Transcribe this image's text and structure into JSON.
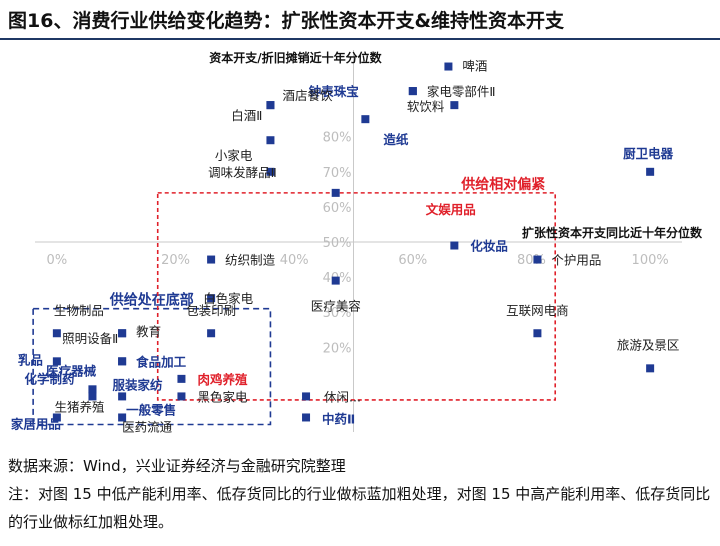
{
  "header": {
    "title": "图16、消费行业供给变化趋势：扩张性资本开支&维持性资本开支"
  },
  "footer": {
    "source": "数据来源：Wind，兴业证券经济与金融研究院整理",
    "note": "注：对图 15 中低产能利用率、低存货同比的行业做标蓝加粗处理，对图 15 中高产能利用率、低存货同比的行业做标红加粗处理。"
  },
  "chart_data": {
    "type": "scatter",
    "xlabel": "扩张性资本开支同比近十年分位数",
    "ylabel": "资本开支/折旧摊销近十年分位数",
    "xlim": [
      -0.02,
      1.02
    ],
    "ylim": [
      -0.03,
      1.03
    ],
    "x_ticks": [
      "0%",
      "20%",
      "40%",
      "60%",
      "80%",
      "100%"
    ],
    "y_ticks": [
      "20%",
      "30%",
      "40%",
      "50%",
      "60%",
      "70%",
      "80%"
    ],
    "grid": false,
    "marker_color": "#1f3a93",
    "colors": {
      "blue_emphasis": "#1f3a93",
      "red_emphasis": "#e0202a",
      "box_blue": "#1f3a93",
      "box_red": "#e0202a"
    },
    "regions": [
      {
        "label": "供给处在底部",
        "color": "#1f3a93",
        "x": [
          -0.04,
          0.36
        ],
        "y": [
          -0.02,
          0.31
        ]
      },
      {
        "label": "供给相对偏紧",
        "color": "#e0202a",
        "x": [
          0.17,
          0.84
        ],
        "y": [
          0.05,
          0.64
        ]
      }
    ],
    "points": [
      {
        "label": "啤酒",
        "x": 0.66,
        "y": 1.0,
        "style": "normal"
      },
      {
        "label": "钟表珠宝",
        "x": 0.6,
        "y": 0.93,
        "style": "blue"
      },
      {
        "label": "家电零部件Ⅱ",
        "x": 0.6,
        "y": 0.93,
        "style": "normal"
      },
      {
        "label": "软饮料",
        "x": 0.67,
        "y": 0.89,
        "style": "normal"
      },
      {
        "label": "酒店餐饮",
        "x": 0.36,
        "y": 0.89,
        "style": "normal"
      },
      {
        "label": "白酒Ⅱ",
        "x": 0.36,
        "y": 0.89,
        "style": "normal"
      },
      {
        "label": "造纸",
        "x": 0.52,
        "y": 0.85,
        "style": "blue"
      },
      {
        "label": "小家电",
        "x": 0.36,
        "y": 0.79,
        "style": "normal"
      },
      {
        "label": "厨卫电器",
        "x": 1.0,
        "y": 0.7,
        "style": "blue"
      },
      {
        "label": "调味发酵品Ⅱ",
        "x": 0.36,
        "y": 0.7,
        "style": "normal"
      },
      {
        "label": "文娱用品",
        "x": 0.47,
        "y": 0.64,
        "style": "red"
      },
      {
        "label": "化妆品",
        "x": 0.67,
        "y": 0.49,
        "style": "blue"
      },
      {
        "label": "个护用品",
        "x": 0.81,
        "y": 0.45,
        "style": "normal"
      },
      {
        "label": "纺织制造",
        "x": 0.26,
        "y": 0.45,
        "style": "normal"
      },
      {
        "label": "医疗美容",
        "x": 0.47,
        "y": 0.39,
        "style": "normal"
      },
      {
        "label": "白色家电",
        "x": 0.26,
        "y": 0.34,
        "style": "normal"
      },
      {
        "label": "包装印刷",
        "x": 0.26,
        "y": 0.24,
        "style": "normal"
      },
      {
        "label": "互联网电商",
        "x": 0.81,
        "y": 0.24,
        "style": "normal"
      },
      {
        "label": "旅游及景区",
        "x": 1.0,
        "y": 0.14,
        "style": "normal"
      },
      {
        "label": "生物制品",
        "x": 0.0,
        "y": 0.24,
        "style": "normal"
      },
      {
        "label": "照明设备Ⅱ",
        "x": 0.11,
        "y": 0.24,
        "style": "normal"
      },
      {
        "label": "教育",
        "x": 0.11,
        "y": 0.24,
        "style": "normal"
      },
      {
        "label": "乳品",
        "x": 0.0,
        "y": 0.16,
        "style": "blue"
      },
      {
        "label": "医疗器械",
        "x": 0.11,
        "y": 0.16,
        "style": "blue"
      },
      {
        "label": "食品加工",
        "x": 0.11,
        "y": 0.16,
        "style": "blue"
      },
      {
        "label": "肉鸡养殖",
        "x": 0.21,
        "y": 0.11,
        "style": "red"
      },
      {
        "label": "化学制药",
        "x": 0.06,
        "y": 0.08,
        "style": "blue"
      },
      {
        "label": "服装家纺",
        "x": 0.06,
        "y": 0.08,
        "style": "blue"
      },
      {
        "label": "生猪养殖",
        "x": 0.06,
        "y": 0.06,
        "style": "normal"
      },
      {
        "label": "黑色家电",
        "x": 0.21,
        "y": 0.06,
        "style": "normal"
      },
      {
        "label": "一般零售",
        "x": 0.11,
        "y": 0.06,
        "style": "blue"
      },
      {
        "label": "休闲...",
        "x": 0.42,
        "y": 0.06,
        "style": "normal"
      },
      {
        "label": "家居用品",
        "x": 0.0,
        "y": 0.0,
        "style": "blue"
      },
      {
        "label": "医药流通",
        "x": 0.11,
        "y": 0.0,
        "style": "normal"
      },
      {
        "label": "中药Ⅱ",
        "x": 0.42,
        "y": 0.0,
        "style": "blue"
      }
    ]
  }
}
